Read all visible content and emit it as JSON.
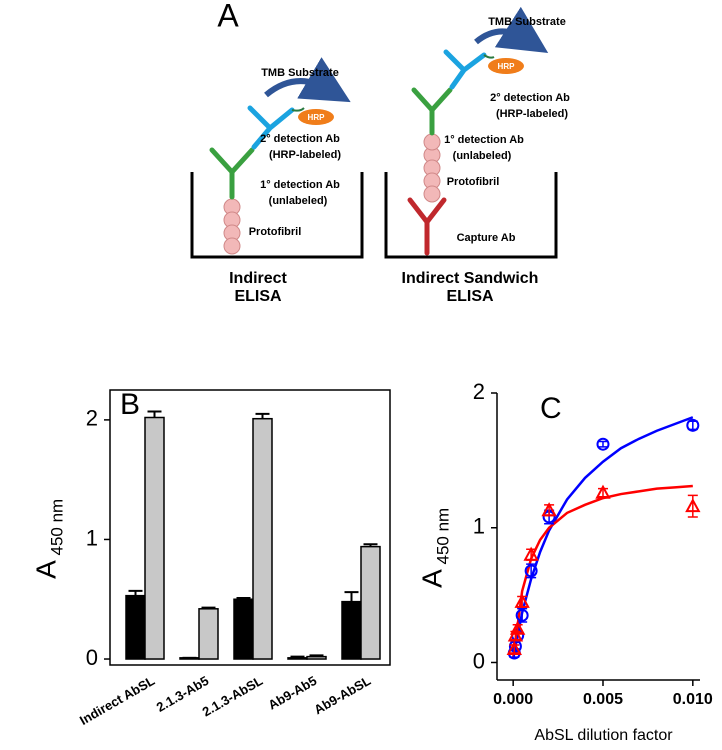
{
  "figure": {
    "panel_a": {
      "label": "A",
      "left": {
        "substrate": "TMB Substrate",
        "enzyme": "HRP",
        "secondary": "2° detection Ab",
        "secondary_note": "(HRP-labeled)",
        "primary": "1° detection Ab",
        "primary_note": "(unlabeled)",
        "antigen": "Protofibril",
        "title": [
          "Indirect",
          "ELISA"
        ]
      },
      "right": {
        "substrate": "TMB Substrate",
        "enzyme": "HRP",
        "secondary": "2° detection Ab",
        "secondary_note": "(HRP-labeled)",
        "primary": "1° detection Ab",
        "primary_note": "(unlabeled)",
        "antigen": "Protofibril",
        "capture": "Capture Ab",
        "title": [
          "Indirect Sandwich",
          "ELISA"
        ]
      }
    }
  },
  "chart_data": [
    {
      "type": "bar",
      "label": "B",
      "categories": [
        "Indirect AbSL",
        "2.1.3-Ab5",
        "2.1.3-AbSL",
        "Ab9-Ab5",
        "Ab9-AbSL"
      ],
      "series": [
        {
          "color": "#000000",
          "values": [
            0.53,
            0.01,
            0.5,
            0.01,
            0.48
          ],
          "errors": [
            0.04,
            0.0,
            0.01,
            0.01,
            0.08
          ]
        },
        {
          "color": "#c8c8c8",
          "values": [
            2.02,
            0.42,
            2.01,
            0.02,
            0.94
          ],
          "errors": [
            0.05,
            0.01,
            0.04,
            0.01,
            0.02
          ]
        }
      ],
      "ylabel": "A",
      "ylabel_sub": "450 nm",
      "ylim": [
        -0.05,
        2.25
      ],
      "yticks": [
        0,
        1,
        2
      ]
    },
    {
      "type": "scatter",
      "label": "C",
      "x": [
        6.25e-05,
        0.000125,
        0.00025,
        0.0005,
        0.001,
        0.002,
        0.005,
        0.01
      ],
      "series": [
        {
          "color": "#0000ff",
          "marker": "circle",
          "values": [
            0.07,
            0.12,
            0.2,
            0.35,
            0.68,
            1.08,
            1.62,
            1.76
          ],
          "errors": [
            0.03,
            0.03,
            0.03,
            0.05,
            0.05,
            0.05,
            0.02,
            0.03
          ]
        },
        {
          "color": "#ff0000",
          "marker": "triangle",
          "values": [
            0.1,
            0.2,
            0.25,
            0.45,
            0.8,
            1.13,
            1.26,
            1.16
          ],
          "errors": [
            0.03,
            0.03,
            0.03,
            0.04,
            0.04,
            0.04,
            0.03,
            0.08
          ]
        }
      ],
      "fits": [
        {
          "color": "#0000ff",
          "x": [
            0,
            0.0005,
            0.001,
            0.0015,
            0.002,
            0.003,
            0.004,
            0.005,
            0.006,
            0.007,
            0.008,
            0.009,
            0.01
          ],
          "values": [
            0.03,
            0.37,
            0.62,
            0.82,
            0.98,
            1.21,
            1.37,
            1.49,
            1.59,
            1.66,
            1.72,
            1.77,
            1.82
          ]
        },
        {
          "color": "#ff0000",
          "x": [
            0,
            0.0005,
            0.001,
            0.0015,
            0.002,
            0.003,
            0.004,
            0.005,
            0.006,
            0.007,
            0.008,
            0.009,
            0.01
          ],
          "values": [
            0.03,
            0.53,
            0.77,
            0.91,
            1.0,
            1.11,
            1.17,
            1.22,
            1.25,
            1.27,
            1.29,
            1.3,
            1.31
          ]
        }
      ],
      "xlabel": "AbSL dilution factor",
      "ylabel": "A",
      "ylabel_sub": "450 nm",
      "xlim": [
        -0.0009,
        0.0104
      ],
      "ylim": [
        -0.13,
        2
      ],
      "xticks": [
        {
          "value": 0,
          "label": "0.000"
        },
        {
          "value": 0.005,
          "label": "0.005"
        },
        {
          "value": 0.01,
          "label": "0.010"
        }
      ],
      "yticks": [
        0,
        1,
        2
      ]
    }
  ]
}
